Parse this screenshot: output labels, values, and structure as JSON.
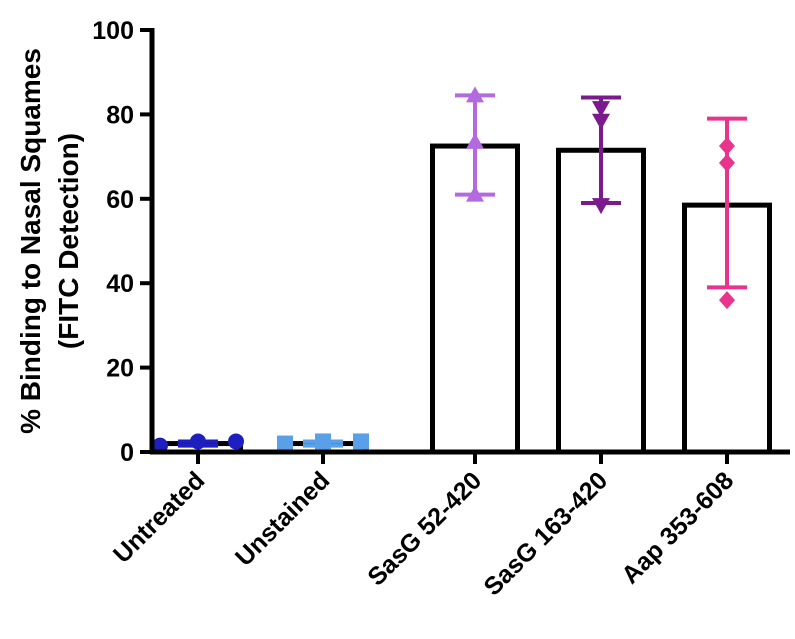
{
  "chart_data": {
    "type": "bar",
    "ylabel_line1": "% Binding to Nasal Squames",
    "ylabel_line2": "(FITC Detection)",
    "xlabel": "",
    "ylim": [
      0,
      100
    ],
    "yticks": [
      "0",
      "20",
      "40",
      "60",
      "80",
      "100"
    ],
    "categories": [
      "Untreated",
      "Unstained",
      "SasG 52-420",
      "SasG 163-420",
      "Aap 353-608"
    ],
    "values": [
      2,
      2,
      72.5,
      71.5,
      58.5
    ],
    "error": [
      {
        "low": 1.5,
        "high": 2.5
      },
      {
        "low": 1.5,
        "high": 2.5
      },
      {
        "low": 61,
        "high": 84.5
      },
      {
        "low": 59,
        "high": 84
      },
      {
        "low": 39,
        "high": 79
      }
    ],
    "points": [
      [
        1.5,
        2.5,
        2.5
      ],
      [
        2,
        2.5,
        2.5
      ],
      [
        61,
        73.5,
        84.5
      ],
      [
        58.5,
        78.5,
        81.5
      ],
      [
        36,
        68.5,
        72.5
      ]
    ],
    "markers": [
      "circle",
      "square",
      "triangle-up",
      "triangle-down",
      "diamond"
    ],
    "colors": [
      "#1f1fbf",
      "#5aa0e8",
      "#b36ae0",
      "#7a1a8c",
      "#e8348c"
    ],
    "bar_fill": "#ffffff",
    "bar_stroke": "#000000"
  }
}
